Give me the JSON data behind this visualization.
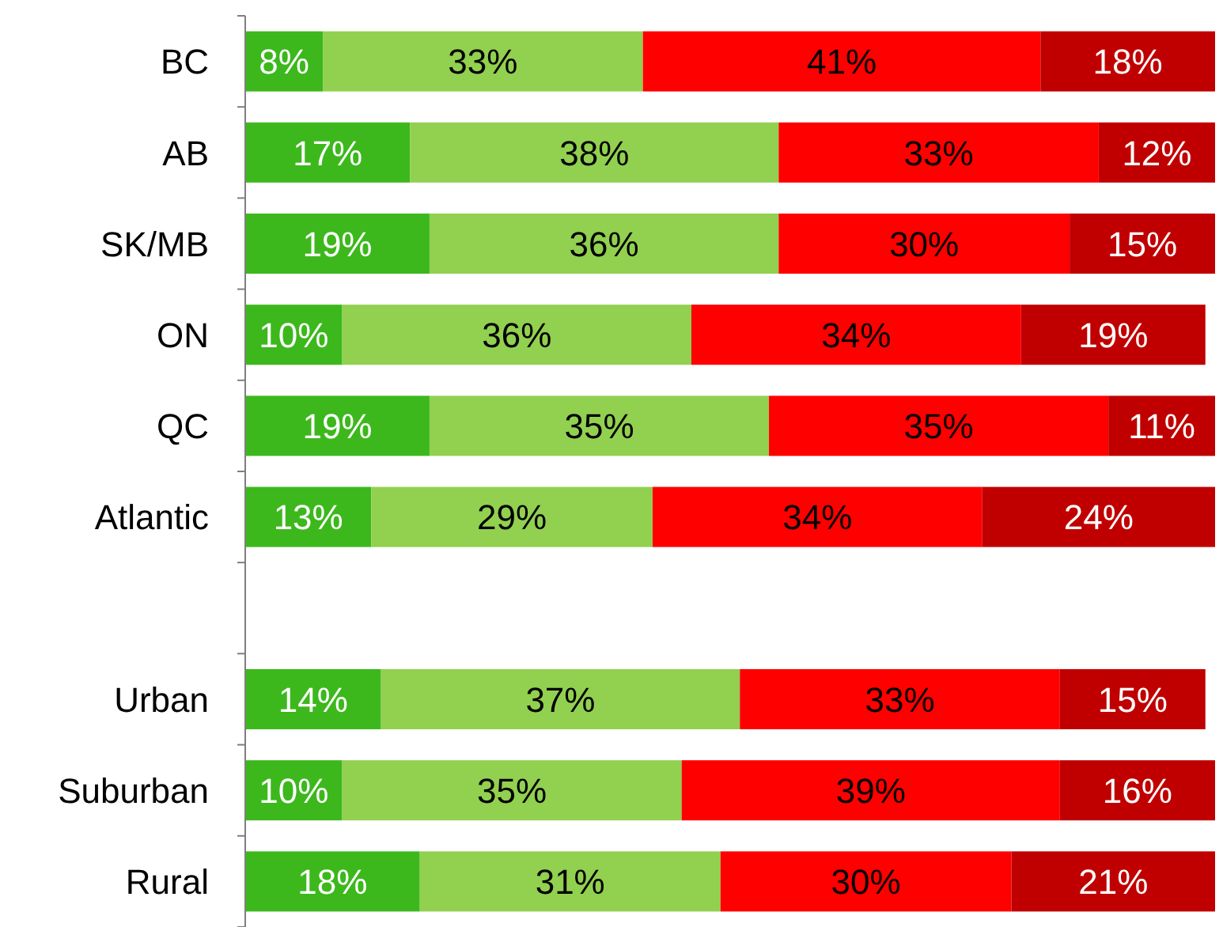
{
  "chart_data": {
    "type": "bar",
    "orientation": "horizontal",
    "stacked": true,
    "categories": [
      "BC",
      "AB",
      "SK/MB",
      "ON",
      "QC",
      "Atlantic",
      null,
      "Urban",
      "Suburban",
      "Rural"
    ],
    "series": [
      {
        "color": "#3cb81c",
        "values": [
          8,
          17,
          19,
          10,
          19,
          13,
          null,
          14,
          10,
          18
        ],
        "value_labels": [
          "8%",
          "17%",
          "19%",
          "10%",
          "19%",
          "13%",
          null,
          "14%",
          "10%",
          "18%"
        ]
      },
      {
        "color": "#92d050",
        "values": [
          33,
          38,
          36,
          36,
          35,
          29,
          null,
          37,
          35,
          31
        ],
        "value_labels": [
          "33%",
          "38%",
          "36%",
          "36%",
          "35%",
          "29%",
          null,
          "37%",
          "35%",
          "31%"
        ]
      },
      {
        "color": "#ff0000",
        "values": [
          41,
          33,
          30,
          34,
          35,
          34,
          null,
          33,
          39,
          30
        ],
        "value_labels": [
          "41%",
          "33%",
          "30%",
          "34%",
          "35%",
          "34%",
          null,
          "33%",
          "39%",
          "30%"
        ]
      },
      {
        "color": "#c00000",
        "values": [
          18,
          12,
          15,
          19,
          11,
          24,
          null,
          15,
          16,
          21
        ],
        "value_labels": [
          "18%",
          "12%",
          "15%",
          "19%",
          "11%",
          "24%",
          null,
          "15%",
          "16%",
          "21%"
        ]
      }
    ]
  }
}
